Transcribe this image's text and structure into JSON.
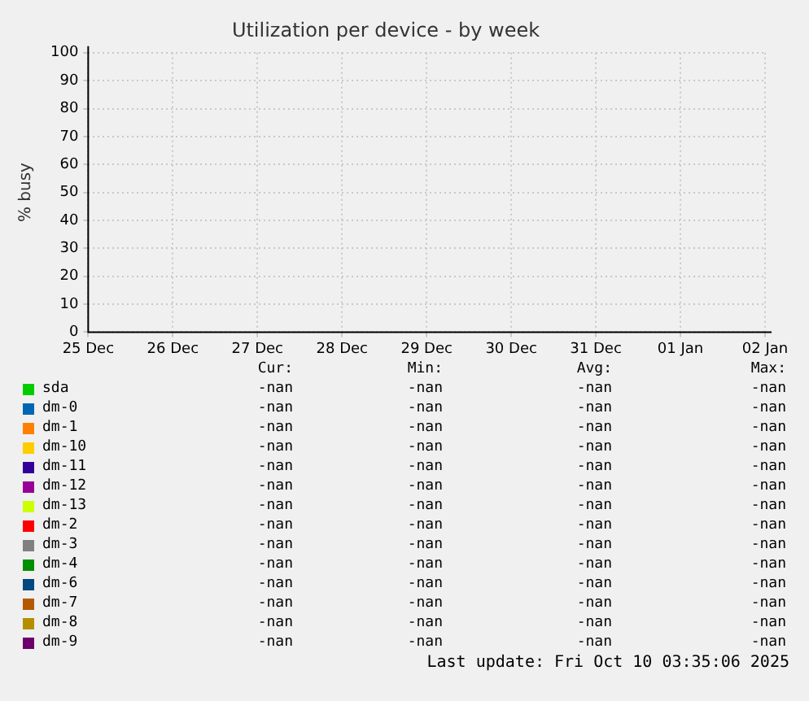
{
  "chart_data": {
    "type": "line",
    "title": "Utilization per device - by week",
    "ylabel": "% busy",
    "categories": [
      "25 Dec",
      "26 Dec",
      "27 Dec",
      "28 Dec",
      "29 Dec",
      "30 Dec",
      "31 Dec",
      "01 Jan",
      "02 Jan"
    ],
    "ylim": [
      0,
      100
    ],
    "yticks": [
      0,
      10,
      20,
      30,
      40,
      50,
      60,
      70,
      80,
      90,
      100
    ],
    "grid": true,
    "legend": "bottom",
    "series": [
      {
        "name": "sda",
        "color": "#00cc00",
        "values": [
          null,
          null,
          null,
          null,
          null,
          null,
          null,
          null,
          null
        ]
      },
      {
        "name": "dm-0",
        "color": "#0066b3",
        "values": [
          null,
          null,
          null,
          null,
          null,
          null,
          null,
          null,
          null
        ]
      },
      {
        "name": "dm-1",
        "color": "#ff8000",
        "values": [
          null,
          null,
          null,
          null,
          null,
          null,
          null,
          null,
          null
        ]
      },
      {
        "name": "dm-10",
        "color": "#ffcc00",
        "values": [
          null,
          null,
          null,
          null,
          null,
          null,
          null,
          null,
          null
        ]
      },
      {
        "name": "dm-11",
        "color": "#330099",
        "values": [
          null,
          null,
          null,
          null,
          null,
          null,
          null,
          null,
          null
        ]
      },
      {
        "name": "dm-12",
        "color": "#990099",
        "values": [
          null,
          null,
          null,
          null,
          null,
          null,
          null,
          null,
          null
        ]
      },
      {
        "name": "dm-13",
        "color": "#ccff00",
        "values": [
          null,
          null,
          null,
          null,
          null,
          null,
          null,
          null,
          null
        ]
      },
      {
        "name": "dm-2",
        "color": "#ff0000",
        "values": [
          null,
          null,
          null,
          null,
          null,
          null,
          null,
          null,
          null
        ]
      },
      {
        "name": "dm-3",
        "color": "#808080",
        "values": [
          null,
          null,
          null,
          null,
          null,
          null,
          null,
          null,
          null
        ]
      },
      {
        "name": "dm-4",
        "color": "#008f00",
        "values": [
          null,
          null,
          null,
          null,
          null,
          null,
          null,
          null,
          null
        ]
      },
      {
        "name": "dm-6",
        "color": "#00487d",
        "values": [
          null,
          null,
          null,
          null,
          null,
          null,
          null,
          null,
          null
        ]
      },
      {
        "name": "dm-7",
        "color": "#b35a00",
        "values": [
          null,
          null,
          null,
          null,
          null,
          null,
          null,
          null,
          null
        ]
      },
      {
        "name": "dm-8",
        "color": "#b38f00",
        "values": [
          null,
          null,
          null,
          null,
          null,
          null,
          null,
          null,
          null
        ]
      },
      {
        "name": "dm-9",
        "color": "#6b006b",
        "values": [
          null,
          null,
          null,
          null,
          null,
          null,
          null,
          null,
          null
        ]
      }
    ],
    "annotations": [
      "Cur:",
      "Min:",
      "Avg:",
      "Max:",
      "-nan",
      "-nan",
      "-nan",
      "-nan",
      "-nan",
      "-nan",
      "-nan",
      "-nan",
      "-nan",
      "-nan",
      "-nan",
      "-nan",
      "-nan",
      "-nan",
      "-nan",
      "-nan",
      "-nan",
      "-nan",
      "-nan",
      "-nan",
      "-nan",
      "-nan",
      "-nan",
      "-nan",
      "-nan",
      "-nan",
      "-nan",
      "-nan",
      "-nan",
      "-nan",
      "-nan",
      "-nan",
      "-nan",
      "-nan",
      "-nan",
      "-nan",
      "-nan",
      "-nan",
      "-nan",
      "-nan",
      "-nan",
      "-nan",
      "-nan",
      "-nan",
      "-nan",
      "-nan",
      "-nan",
      "-nan",
      "-nan",
      "-nan",
      "-nan",
      "-nan",
      "-nan",
      "-nan",
      "-nan",
      "-nan",
      "Last update: Fri Oct 10 03:35:06 2025"
    ]
  }
}
